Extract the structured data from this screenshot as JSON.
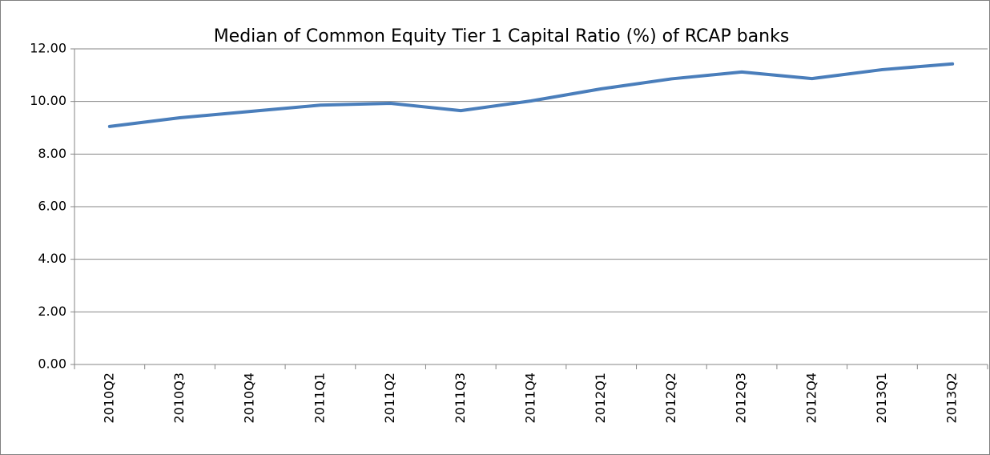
{
  "chart_data": {
    "type": "line",
    "title": "Median of Common Equity Tier 1 Capital Ratio (%) of RCAP banks",
    "categories": [
      "2010Q2",
      "2010Q3",
      "2010Q4",
      "2011Q1",
      "2011Q2",
      "2011Q3",
      "2011Q4",
      "2012Q1",
      "2012Q2",
      "2012Q3",
      "2012Q4",
      "2013Q1",
      "2013Q2"
    ],
    "series": [
      {
        "color": "#4a7ebb",
        "values": [
          9.05,
          9.38,
          9.62,
          9.86,
          9.93,
          9.65,
          10.02,
          10.48,
          10.86,
          11.12,
          10.87,
          11.21,
          11.43
        ]
      }
    ],
    "ylim": [
      0,
      12
    ],
    "yticks": [
      {
        "value": 0,
        "label": "0.00"
      },
      {
        "value": 2,
        "label": "2.00"
      },
      {
        "value": 4,
        "label": "4.00"
      },
      {
        "value": 6,
        "label": "6.00"
      },
      {
        "value": 8,
        "label": "8.00"
      },
      {
        "value": 10,
        "label": "10.00"
      },
      {
        "value": 12,
        "label": "12.00"
      }
    ],
    "grid": true
  }
}
